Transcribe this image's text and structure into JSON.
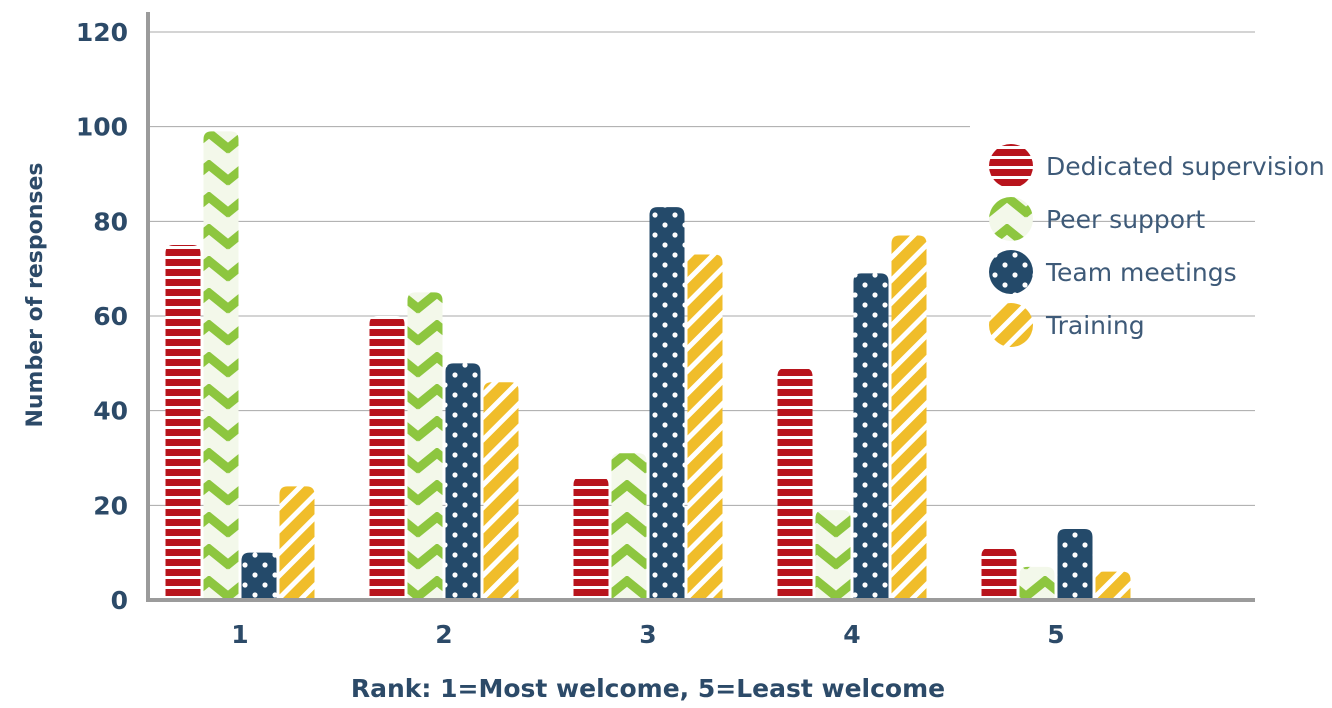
{
  "colors": {
    "axis": "#9b9b9b",
    "grid": "#a8a8a8",
    "label": "#2c4a68",
    "legend_text": "#3e5a78",
    "dedicated_supervision": "#b8141c",
    "peer_support": "#8dc63f",
    "team_meetings": "#244a6a",
    "training": "#f0bd2a",
    "pattern_light": "#ffffff"
  },
  "chart_data": {
    "type": "bar",
    "categories": [
      "1",
      "2",
      "3",
      "4",
      "5"
    ],
    "series": [
      {
        "name": "Dedicated supervision",
        "pattern": "horizontal-stripes",
        "color": "#b8141c",
        "values": [
          75,
          60,
          26,
          49,
          11
        ]
      },
      {
        "name": "Peer support",
        "pattern": "chevrons",
        "color": "#8dc63f",
        "values": [
          99,
          65,
          31,
          19,
          7
        ]
      },
      {
        "name": "Team meetings",
        "pattern": "dots",
        "color": "#244a6a",
        "values": [
          10,
          50,
          83,
          69,
          15
        ]
      },
      {
        "name": "Training",
        "pattern": "diagonal-stripes",
        "color": "#f0bd2a",
        "values": [
          24,
          46,
          73,
          77,
          6
        ]
      }
    ],
    "xlabel": "Rank:  1=Most welcome,  5=Least welcome",
    "ylabel": "Number of responses",
    "ylim": [
      0,
      120
    ],
    "yticks": [
      "0",
      "20",
      "40",
      "60",
      "80",
      "100",
      "120"
    ],
    "grid": true,
    "legend_position": "right"
  }
}
